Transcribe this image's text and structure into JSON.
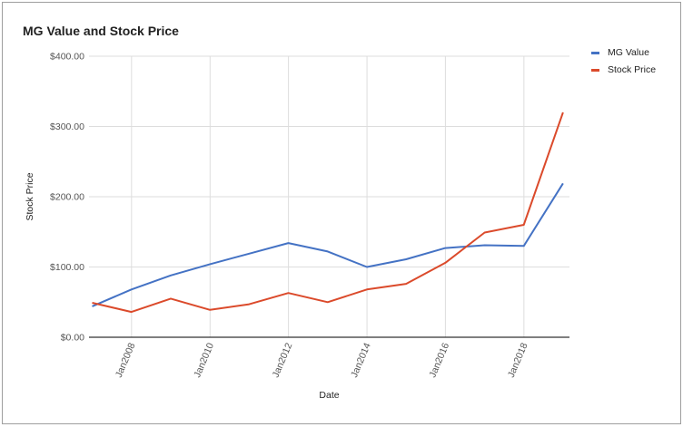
{
  "chart_data": {
    "type": "line",
    "title": "MG Value and Stock Price",
    "xlabel": "Date",
    "ylabel": "Stock Price",
    "x": [
      "2006-12-31",
      "2007-12-31",
      "2008-12-31",
      "2009-12-31",
      "2010-12-31",
      "2011-12-31",
      "2012-12-31",
      "2013-12-31",
      "2014-12-31",
      "2015-12-31",
      "2016-12-31",
      "2017-12-31",
      "2018-12-31"
    ],
    "xlim": [
      "2006-12-01",
      "2019-03-01"
    ],
    "x_ticks": [
      "Jan2008",
      "Jan2010",
      "Jan2012",
      "Jan2014",
      "Jan2016",
      "Jan2018"
    ],
    "ylim": [
      0,
      400
    ],
    "y_ticks": [
      "$0.00",
      "$100.00",
      "$200.00",
      "$300.00",
      "$400.00"
    ],
    "grid": true,
    "legend_position": "right",
    "series": [
      {
        "name": "MG Value",
        "color": "#4472c4",
        "values": [
          44,
          68,
          88,
          104,
          119,
          134,
          122,
          100,
          111,
          127,
          131,
          130,
          219
        ]
      },
      {
        "name": "Stock Price",
        "color": "#db4a2b",
        "values": [
          49,
          36,
          55,
          39,
          47,
          63,
          50,
          68,
          76,
          106,
          149,
          160,
          320
        ]
      }
    ]
  }
}
